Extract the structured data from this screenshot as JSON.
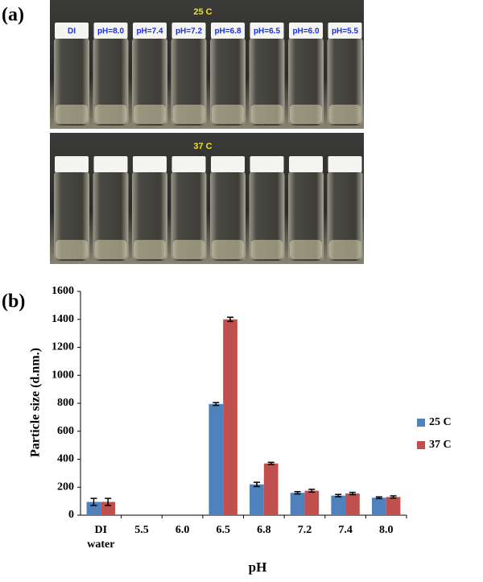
{
  "panel_a": {
    "label": "(a)",
    "top_title": "25 C",
    "bottom_title": "37 C",
    "vial_labels": [
      "DI",
      "pH=8.0",
      "pH=7.4",
      "pH=7.2",
      "pH=6.8",
      "pH=6.5",
      "pH=6.0",
      "pH=5.5"
    ]
  },
  "panel_b": {
    "label": "(b)"
  },
  "chart_data": {
    "type": "bar",
    "x_label": "pH",
    "y_label": "Particle size (d.nm.)",
    "categories": [
      "DI water",
      "5.5",
      "6.0",
      "6.5",
      "6.8",
      "7.2",
      "7.4",
      "8.0"
    ],
    "series": [
      {
        "name": "25 C",
        "color": "#4f81bd",
        "values": [
          95,
          null,
          null,
          795,
          220,
          160,
          140,
          125
        ],
        "errors": [
          25,
          null,
          null,
          10,
          15,
          8,
          8,
          6
        ]
      },
      {
        "name": "37 C",
        "color": "#c0504d",
        "values": [
          95,
          null,
          null,
          1400,
          370,
          175,
          155,
          130
        ],
        "errors": [
          25,
          null,
          null,
          15,
          8,
          10,
          8,
          8
        ]
      }
    ],
    "ylim": [
      0,
      1600
    ],
    "yticks": [
      0,
      200,
      400,
      600,
      800,
      1000,
      1200,
      1400,
      1600
    ],
    "legend": "right",
    "grid": false
  }
}
